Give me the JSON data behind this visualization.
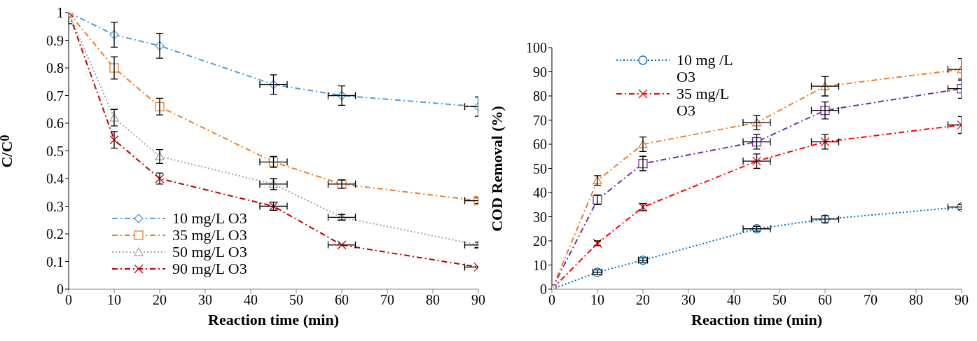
{
  "chart_data": [
    {
      "type": "line",
      "xlabel": "Reaction time (min)",
      "ylabel": "C/C$_{0}$",
      "x": [
        0,
        10,
        20,
        45,
        60,
        90
      ],
      "xlim": [
        0,
        90
      ],
      "xticks": [
        0,
        10,
        20,
        30,
        40,
        50,
        60,
        70,
        80,
        90
      ],
      "ylim": [
        0,
        1
      ],
      "yticks": [
        0,
        0.1,
        0.2,
        0.3,
        0.4,
        0.5,
        0.6,
        0.7,
        0.8,
        0.9,
        1
      ],
      "grid": false,
      "legend": "bottom left",
      "series": [
        {
          "name": "10 mg/L O3",
          "color": "#5b9bd5",
          "marker": "diamond",
          "line_style": "dashed",
          "values": [
            1,
            0.92,
            0.88,
            0.74,
            0.7,
            0.66
          ],
          "errors": [
            0.04,
            0.045,
            0.045,
            0.035,
            0.035,
            0.035
          ],
          "xerrors": [
            null,
            null,
            null,
            3,
            3,
            3
          ]
        },
        {
          "name": "35 mg/L O3",
          "color": "#ed7d31",
          "marker": "square",
          "line_style": "dashed",
          "values": [
            1,
            0.8,
            0.66,
            0.46,
            0.38,
            0.32
          ],
          "errors": [
            null,
            0.04,
            0.03,
            0.02,
            0.015,
            0.01
          ],
          "xerrors": [
            null,
            null,
            null,
            3,
            3,
            3
          ]
        },
        {
          "name": "50 mg/L O3",
          "color": "#a5a5a5",
          "marker": "triangle",
          "line_style": "dotted",
          "values": [
            1,
            0.62,
            0.48,
            0.38,
            0.26,
            0.16
          ],
          "errors": [
            null,
            0.03,
            0.025,
            0.02,
            0.01,
            0.01
          ],
          "xerrors": [
            null,
            null,
            null,
            3,
            3,
            3
          ]
        },
        {
          "name": "90 mg/L O3",
          "color": "#c00000",
          "marker": "cross",
          "line_style": "dashed",
          "values": [
            1,
            0.54,
            0.4,
            0.3,
            0.16,
            0.08
          ],
          "errors": [
            null,
            0.03,
            0.02,
            0.015,
            null,
            null
          ],
          "xerrors": [
            null,
            null,
            null,
            3,
            3,
            3
          ]
        }
      ]
    },
    {
      "type": "line",
      "xlabel": "Reaction time (min)",
      "ylabel": "COD Removal (%)",
      "x": [
        0,
        10,
        20,
        45,
        60,
        90
      ],
      "xlim": [
        0,
        90
      ],
      "xticks": [
        0,
        10,
        20,
        30,
        40,
        50,
        60,
        70,
        80,
        90
      ],
      "ylim": [
        0,
        100
      ],
      "yticks": [
        0,
        10,
        20,
        30,
        40,
        50,
        60,
        70,
        80,
        90,
        100
      ],
      "grid": false,
      "legend": "top left",
      "series": [
        {
          "name": "10 mg /L O3",
          "color": "#0070c0",
          "marker": "circle",
          "line_style": "dotted",
          "values": [
            0,
            7,
            12,
            25,
            29,
            34
          ],
          "errors": [
            null,
            1,
            1,
            1,
            1.5,
            1
          ],
          "xerrors": [
            null,
            1,
            1,
            3,
            3,
            3
          ]
        },
        {
          "name": "35 mg/L O3",
          "color": "#ff0000",
          "marker": "cross",
          "line_style": "dashed",
          "values": [
            0,
            19,
            34,
            53,
            61,
            68
          ],
          "errors": [
            null,
            1,
            1.5,
            3,
            3,
            3.5
          ],
          "xerrors": [
            null,
            null,
            null,
            3,
            3,
            3
          ]
        },
        {
          "color": "#7030a0",
          "marker": "square",
          "line_style": "dashed",
          "values": [
            0,
            37,
            52,
            61,
            74,
            83
          ],
          "errors": [
            null,
            2,
            3,
            3,
            3.5,
            4
          ],
          "xerrors": [
            null,
            null,
            null,
            3,
            3,
            3
          ]
        },
        {
          "color": "#ed7d31",
          "marker": "triangle",
          "line_style": "dashed",
          "values": [
            0,
            45,
            60,
            69,
            84,
            91
          ],
          "errors": [
            null,
            2,
            3,
            3,
            4,
            4.5
          ],
          "xerrors": [
            null,
            null,
            null,
            3,
            3,
            3
          ]
        }
      ]
    }
  ]
}
